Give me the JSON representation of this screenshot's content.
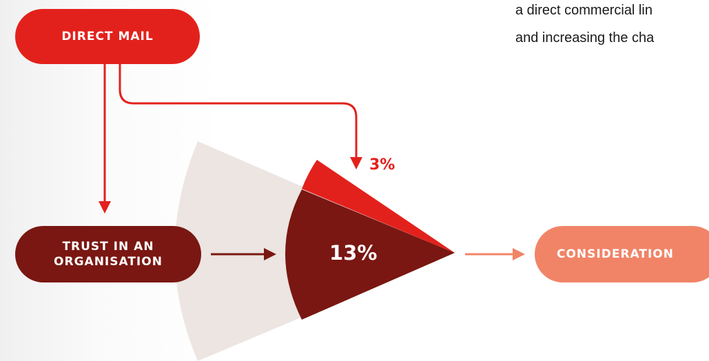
{
  "colors": {
    "direct_mail": "#e3211c",
    "trust": "#7a1712",
    "consideration": "#f18467",
    "fan_bg": "#ece5e1",
    "connector": "#e3211c"
  },
  "nodes": {
    "direct_mail": "DIRECT MAIL",
    "trust_line1": "TRUST IN AN",
    "trust_line2": "ORGANISATION",
    "consideration": "CONSIDERATION"
  },
  "values": {
    "direct_effect": "3%",
    "trust_effect": "13%"
  },
  "caption": {
    "line1": "a direct commercial lin",
    "line2": "and increasing the cha"
  }
}
